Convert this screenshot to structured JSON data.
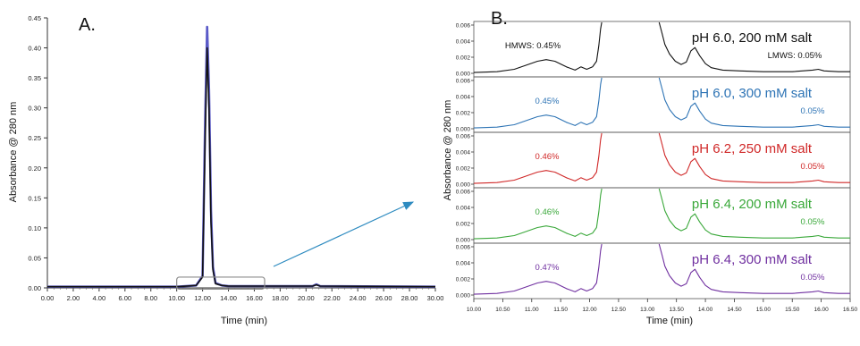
{
  "chart_data": [
    {
      "type": "line",
      "panel_label": "A.",
      "xlabel": "Time (min)",
      "ylabel": "Absorbance @ 280 nm",
      "xlim": [
        0,
        30
      ],
      "ylim": [
        0,
        0.45
      ],
      "x_ticks": [
        "0.00",
        "2.00",
        "4.00",
        "6.00",
        "8.00",
        "10.00",
        "12.00",
        "14.00",
        "16.00",
        "18.00",
        "20.00",
        "22.00",
        "24.00",
        "26.00",
        "28.00",
        "30.00"
      ],
      "y_ticks": [
        "0.00",
        "0.05",
        "0.10",
        "0.15",
        "0.20",
        "0.25",
        "0.30",
        "0.35",
        "0.40",
        "0.45"
      ],
      "grid": false,
      "series": [
        {
          "color": "#5a5ac8",
          "x": [
            0,
            10,
            11.5,
            12.0,
            12.2,
            12.35,
            12.5,
            12.65,
            12.8,
            13.0,
            13.5,
            14,
            20.5,
            20.8,
            21.1,
            30
          ],
          "y": [
            0.002,
            0.002,
            0.004,
            0.02,
            0.28,
            0.435,
            0.33,
            0.13,
            0.035,
            0.008,
            0.004,
            0.003,
            0.003,
            0.006,
            0.003,
            0.002
          ]
        },
        {
          "color": "#111111",
          "x": [
            0,
            10,
            11.5,
            12.0,
            12.2,
            12.35,
            12.5,
            12.65,
            12.8,
            13.0,
            13.5,
            14,
            20.5,
            20.8,
            21.1,
            30
          ],
          "y": [
            0.002,
            0.002,
            0.004,
            0.018,
            0.25,
            0.4,
            0.3,
            0.11,
            0.03,
            0.007,
            0.004,
            0.003,
            0.003,
            0.005,
            0.003,
            0.002
          ]
        }
      ],
      "zoom_box": {
        "x": [
          10,
          16.8
        ],
        "y": [
          -0.002,
          0.018
        ]
      }
    },
    {
      "type": "line",
      "panel_label": "B.",
      "xlabel": "Time (min)",
      "ylabel": "Absorbance @ 280 nm",
      "xlim": [
        10,
        16.5
      ],
      "ylim": [
        0,
        0.006
      ],
      "x_ticks": [
        "10.00",
        "10.50",
        "11.00",
        "11.50",
        "12.00",
        "12.50",
        "13.00",
        "13.50",
        "14.00",
        "14.50",
        "15.00",
        "15.50",
        "16.00",
        "16.50"
      ],
      "y_ticks": [
        "0.000",
        "0.002",
        "0.004",
        "0.006"
      ],
      "y_tick_labels": [
        "0.000",
        "0.002",
        "0.004",
        "0.006"
      ],
      "grid": false,
      "gap_between_segments": [
        12.2,
        13.2
      ],
      "panels": [
        {
          "condition": "pH 6.0, 200 mM salt",
          "color": "#111111",
          "hmws_label": "HMWS: 0.45%",
          "lmws_label": "LMWS: 0.05%"
        },
        {
          "condition": "pH 6.0, 300 mM salt",
          "color": "#2e74b5",
          "hmws_label": "0.45%",
          "lmws_label": "0.05%"
        },
        {
          "condition": "pH 6.2, 250 mM salt",
          "color": "#d02828",
          "hmws_label": "0.46%",
          "lmws_label": "0.05%"
        },
        {
          "condition": "pH 6.4, 200 mM salt",
          "color": "#3aa83a",
          "hmws_label": "0.46%",
          "lmws_label": "0.05%"
        },
        {
          "condition": "pH 6.4, 300 mM salt",
          "color": "#7030a0",
          "hmws_label": "0.47%",
          "lmws_label": "0.05%"
        }
      ],
      "trace_left": {
        "x": [
          10.0,
          10.4,
          10.7,
          10.9,
          11.1,
          11.25,
          11.4,
          11.6,
          11.75,
          11.85,
          11.95,
          12.05,
          12.12,
          12.16,
          12.19,
          12.21
        ],
        "y": [
          0.0001,
          0.0002,
          0.0005,
          0.001,
          0.0015,
          0.0017,
          0.0015,
          0.0008,
          0.0004,
          0.0008,
          0.0005,
          0.0008,
          0.0015,
          0.0035,
          0.0055,
          0.0075
        ]
      },
      "trace_right": {
        "x": [
          13.2,
          13.25,
          13.3,
          13.38,
          13.48,
          13.58,
          13.67,
          13.75,
          13.82,
          13.9,
          14.0,
          14.1,
          14.3,
          14.6,
          15.0,
          15.5,
          15.85,
          15.95,
          16.05,
          16.3,
          16.5
        ],
        "y": [
          0.0065,
          0.005,
          0.0036,
          0.0024,
          0.0015,
          0.0011,
          0.0014,
          0.0028,
          0.0032,
          0.0022,
          0.0012,
          0.0007,
          0.0004,
          0.0003,
          0.0002,
          0.0002,
          0.0004,
          0.0005,
          0.0003,
          0.0002,
          0.0002
        ]
      }
    }
  ]
}
